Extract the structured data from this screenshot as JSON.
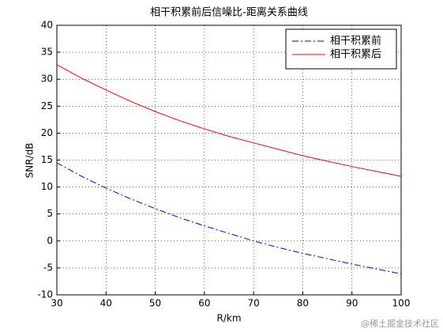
{
  "chart_data": {
    "type": "line",
    "title": "相干积累前后信噪比-距离关系曲线",
    "x_label": "R/km",
    "y_label": "SNR/dB",
    "x": [
      30,
      35,
      40,
      45,
      50,
      55,
      60,
      65,
      70,
      75,
      80,
      85,
      90,
      95,
      100
    ],
    "series": [
      {
        "name": "相干积累前",
        "color": "#0000ff",
        "dash": "dash-dot",
        "values": [
          14.5,
          12,
          9.8,
          7.8,
          6,
          4.3,
          2.8,
          1.4,
          0,
          -1.2,
          -2.3,
          -3.3,
          -4.3,
          -5.2,
          -6.1
        ]
      },
      {
        "name": "相干积累后",
        "color": "#ff0000",
        "dash": "solid",
        "values": [
          32.7,
          30.2,
          28,
          25.9,
          24,
          22.3,
          20.8,
          19.4,
          18.2,
          17,
          15.8,
          14.8,
          13.8,
          12.9,
          12
        ]
      }
    ],
    "xlim": [
      30,
      100
    ],
    "xticks": [
      30,
      40,
      50,
      60,
      70,
      80,
      90,
      100
    ],
    "ylim": [
      -10,
      40
    ],
    "yticks": [
      -10,
      -5,
      0,
      5,
      10,
      15,
      20,
      25,
      30,
      35,
      40
    ],
    "grid": true,
    "legend": "upper right",
    "watermark": "@稀土掘金技术社区"
  }
}
